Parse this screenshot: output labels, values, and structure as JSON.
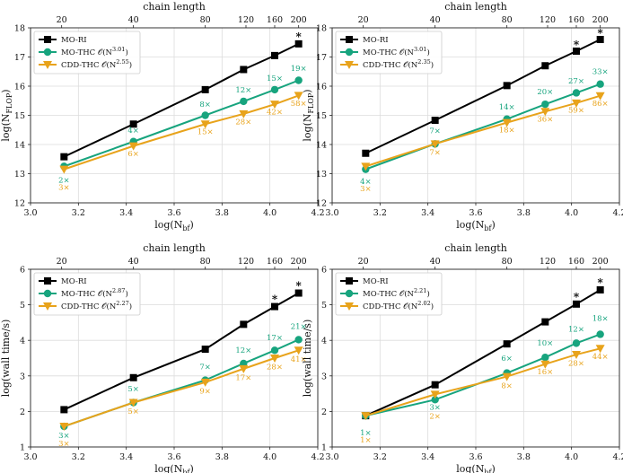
{
  "colors": {
    "mo_ri": "#000000",
    "mo_thc": "#17a47e",
    "cdd_thc": "#e8a31b"
  },
  "chart_data": [
    {
      "type": "line",
      "xlabel": "log(N_bf)",
      "ylabel": "log(N_FLOP)",
      "top_xlabel": "chain length",
      "top_ticks": [
        {
          "pos": 3.13,
          "label": "20"
        },
        {
          "pos": 3.43,
          "label": "40"
        },
        {
          "pos": 3.73,
          "label": "80"
        },
        {
          "pos": 3.9,
          "label": "120"
        },
        {
          "pos": 4.02,
          "label": "160"
        },
        {
          "pos": 4.12,
          "label": "200"
        }
      ],
      "xlim": [
        3.0,
        4.2
      ],
      "ylim": [
        12,
        18
      ],
      "xticks": [
        "3.0",
        "3.2",
        "3.4",
        "3.6",
        "3.8",
        "4.0",
        "4.2"
      ],
      "yticks": [
        "12",
        "13",
        "14",
        "15",
        "16",
        "17",
        "18"
      ],
      "legend_loc": "upper-left",
      "series": [
        {
          "key": "mo_ri",
          "name": "MO-RI",
          "name_base": "MO-RI",
          "name_exp": "",
          "marker": "square",
          "x": [
            3.14,
            3.43,
            3.73,
            3.89,
            4.02,
            4.12
          ],
          "y": [
            13.58,
            14.7,
            15.88,
            16.57,
            17.05,
            17.45
          ]
        },
        {
          "key": "mo_thc",
          "name": "MO-THC O(N^3.01)",
          "name_base": "MO-THC 𝒪(N",
          "name_exp": "3.01",
          "marker": "circle",
          "x": [
            3.14,
            3.43,
            3.73,
            3.89,
            4.02,
            4.12
          ],
          "y": [
            13.25,
            14.1,
            15.0,
            15.48,
            15.88,
            16.2
          ]
        },
        {
          "key": "cdd_thc",
          "name": "CDD-THC O(N^2.55)",
          "name_base": "CDD-THC 𝒪(N",
          "name_exp": "2.55",
          "marker": "triangle-down",
          "x": [
            3.14,
            3.43,
            3.73,
            3.89,
            4.02,
            4.12
          ],
          "y": [
            13.15,
            13.95,
            14.7,
            15.05,
            15.38,
            15.68
          ]
        }
      ],
      "annotations": [
        {
          "series": "mo_thc",
          "text": "2×",
          "x": 3.14,
          "y": 12.7
        },
        {
          "series": "cdd_thc",
          "text": "3×",
          "x": 3.14,
          "y": 12.45
        },
        {
          "series": "mo_thc",
          "text": "4×",
          "x": 3.43,
          "y": 14.4
        },
        {
          "series": "cdd_thc",
          "text": "6×",
          "x": 3.43,
          "y": 13.6
        },
        {
          "series": "mo_thc",
          "text": "8×",
          "x": 3.73,
          "y": 15.3
        },
        {
          "series": "cdd_thc",
          "text": "15×",
          "x": 3.73,
          "y": 14.35
        },
        {
          "series": "mo_thc",
          "text": "12×",
          "x": 3.89,
          "y": 15.78
        },
        {
          "series": "cdd_thc",
          "text": "28×",
          "x": 3.89,
          "y": 14.7
        },
        {
          "series": "mo_thc",
          "text": "15×",
          "x": 4.02,
          "y": 16.18
        },
        {
          "series": "cdd_thc",
          "text": "42×",
          "x": 4.02,
          "y": 15.03
        },
        {
          "series": "mo_thc",
          "text": "19×",
          "x": 4.12,
          "y": 16.52
        },
        {
          "series": "cdd_thc",
          "text": "58×",
          "x": 4.12,
          "y": 15.33
        }
      ],
      "stars": [
        {
          "x": 4.12,
          "y": 17.75
        }
      ]
    },
    {
      "type": "line",
      "xlabel": "log(N_bf)",
      "ylabel": "log(N_FLOP)",
      "top_xlabel": "chain length",
      "top_ticks": [
        {
          "pos": 3.13,
          "label": "20"
        },
        {
          "pos": 3.43,
          "label": "40"
        },
        {
          "pos": 3.73,
          "label": "80"
        },
        {
          "pos": 3.9,
          "label": "120"
        },
        {
          "pos": 4.02,
          "label": "160"
        },
        {
          "pos": 4.12,
          "label": "200"
        }
      ],
      "xlim": [
        3.0,
        4.2
      ],
      "ylim": [
        12,
        18
      ],
      "xticks": [
        "3.0",
        "3.2",
        "3.4",
        "3.6",
        "3.8",
        "4.0",
        "4.2"
      ],
      "yticks": [
        "12",
        "13",
        "14",
        "15",
        "16",
        "17",
        "18"
      ],
      "legend_loc": "upper-left",
      "series": [
        {
          "key": "mo_ri",
          "name": "MO-RI",
          "name_base": "MO-RI",
          "name_exp": "",
          "marker": "square",
          "x": [
            3.14,
            3.43,
            3.73,
            3.89,
            4.02,
            4.12
          ],
          "y": [
            13.7,
            14.83,
            16.02,
            16.7,
            17.2,
            17.6
          ]
        },
        {
          "key": "mo_thc",
          "name": "MO-THC O(N^3.01)",
          "name_base": "MO-THC 𝒪(N",
          "name_exp": "3.01",
          "marker": "circle",
          "x": [
            3.14,
            3.43,
            3.73,
            3.89,
            4.02,
            4.12
          ],
          "y": [
            13.15,
            14.02,
            14.87,
            15.38,
            15.77,
            16.07
          ]
        },
        {
          "key": "cdd_thc",
          "name": "CDD-THC O(N^2.35)",
          "name_base": "CDD-THC 𝒪(N",
          "name_exp": "2.35",
          "marker": "triangle-down",
          "x": [
            3.14,
            3.43,
            3.73,
            3.89,
            4.02,
            4.12
          ],
          "y": [
            13.25,
            14.02,
            14.75,
            15.13,
            15.42,
            15.67
          ]
        }
      ],
      "annotations": [
        {
          "series": "mo_thc",
          "text": "4×",
          "x": 3.14,
          "y": 12.65
        },
        {
          "series": "cdd_thc",
          "text": "3×",
          "x": 3.14,
          "y": 12.4
        },
        {
          "series": "mo_thc",
          "text": "7×",
          "x": 3.43,
          "y": 14.38
        },
        {
          "series": "cdd_thc",
          "text": "7×",
          "x": 3.43,
          "y": 13.65
        },
        {
          "series": "mo_thc",
          "text": "14×",
          "x": 3.73,
          "y": 15.2
        },
        {
          "series": "cdd_thc",
          "text": "18×",
          "x": 3.73,
          "y": 14.42
        },
        {
          "series": "mo_thc",
          "text": "20×",
          "x": 3.89,
          "y": 15.72
        },
        {
          "series": "cdd_thc",
          "text": "36×",
          "x": 3.89,
          "y": 14.78
        },
        {
          "series": "mo_thc",
          "text": "27×",
          "x": 4.02,
          "y": 16.1
        },
        {
          "series": "cdd_thc",
          "text": "59×",
          "x": 4.02,
          "y": 15.1
        },
        {
          "series": "mo_thc",
          "text": "33×",
          "x": 4.12,
          "y": 16.42
        },
        {
          "series": "cdd_thc",
          "text": "86×",
          "x": 4.12,
          "y": 15.33
        }
      ],
      "stars": [
        {
          "x": 4.02,
          "y": 17.47
        },
        {
          "x": 4.12,
          "y": 17.87
        }
      ]
    },
    {
      "type": "line",
      "xlabel": "log(N_bf)",
      "ylabel": "log(wall time/s)",
      "top_xlabel": "chain length",
      "top_ticks": [
        {
          "pos": 3.13,
          "label": "20"
        },
        {
          "pos": 3.43,
          "label": "40"
        },
        {
          "pos": 3.73,
          "label": "80"
        },
        {
          "pos": 3.9,
          "label": "120"
        },
        {
          "pos": 4.02,
          "label": "160"
        },
        {
          "pos": 4.12,
          "label": "200"
        }
      ],
      "xlim": [
        3.0,
        4.2
      ],
      "ylim": [
        1,
        6
      ],
      "xticks": [
        "3.0",
        "3.2",
        "3.4",
        "3.6",
        "3.8",
        "4.0",
        "4.2"
      ],
      "yticks": [
        "1",
        "2",
        "3",
        "4",
        "5",
        "6"
      ],
      "legend_loc": "upper-left",
      "series": [
        {
          "key": "mo_ri",
          "name": "MO-RI",
          "name_base": "MO-RI",
          "name_exp": "",
          "marker": "square",
          "x": [
            3.14,
            3.43,
            3.73,
            3.89,
            4.02,
            4.12
          ],
          "y": [
            2.05,
            2.95,
            3.75,
            4.45,
            4.95,
            5.33
          ]
        },
        {
          "key": "mo_thc",
          "name": "MO-THC O(N^2.87)",
          "name_base": "MO-THC 𝒪(N",
          "name_exp": "2.87",
          "marker": "circle",
          "x": [
            3.14,
            3.43,
            3.73,
            3.89,
            4.02,
            4.12
          ],
          "y": [
            1.58,
            2.25,
            2.88,
            3.35,
            3.72,
            4.02
          ]
        },
        {
          "key": "cdd_thc",
          "name": "CDD-THC O(N^2.27)",
          "name_base": "CDD-THC 𝒪(N",
          "name_exp": "2.27",
          "marker": "triangle-down",
          "x": [
            3.14,
            3.43,
            3.73,
            3.89,
            4.02,
            4.12
          ],
          "y": [
            1.58,
            2.25,
            2.82,
            3.2,
            3.5,
            3.72
          ]
        }
      ],
      "annotations": [
        {
          "series": "mo_thc",
          "text": "3×",
          "x": 3.14,
          "y": 1.25
        },
        {
          "series": "cdd_thc",
          "text": "3×",
          "x": 3.14,
          "y": 1.03
        },
        {
          "series": "mo_thc",
          "text": "5×",
          "x": 3.43,
          "y": 2.57
        },
        {
          "series": "cdd_thc",
          "text": "5×",
          "x": 3.43,
          "y": 1.93
        },
        {
          "series": "mo_thc",
          "text": "7×",
          "x": 3.73,
          "y": 3.18
        },
        {
          "series": "cdd_thc",
          "text": "9×",
          "x": 3.73,
          "y": 2.5
        },
        {
          "series": "mo_thc",
          "text": "12×",
          "x": 3.89,
          "y": 3.65
        },
        {
          "series": "cdd_thc",
          "text": "17×",
          "x": 3.89,
          "y": 2.88
        },
        {
          "series": "mo_thc",
          "text": "17×",
          "x": 4.02,
          "y": 4.0
        },
        {
          "series": "cdd_thc",
          "text": "28×",
          "x": 4.02,
          "y": 3.18
        },
        {
          "series": "mo_thc",
          "text": "21×",
          "x": 4.12,
          "y": 4.32
        },
        {
          "series": "cdd_thc",
          "text": "41×",
          "x": 4.12,
          "y": 3.4
        }
      ],
      "stars": [
        {
          "x": 4.02,
          "y": 5.2
        },
        {
          "x": 4.12,
          "y": 5.58
        }
      ]
    },
    {
      "type": "line",
      "xlabel": "log(N_bf)",
      "ylabel": "log(wall time/s)",
      "top_xlabel": "chain length",
      "top_ticks": [
        {
          "pos": 3.13,
          "label": "20"
        },
        {
          "pos": 3.43,
          "label": "40"
        },
        {
          "pos": 3.73,
          "label": "80"
        },
        {
          "pos": 3.9,
          "label": "120"
        },
        {
          "pos": 4.02,
          "label": "160"
        },
        {
          "pos": 4.12,
          "label": "200"
        }
      ],
      "xlim": [
        3.0,
        4.2
      ],
      "ylim": [
        1,
        6
      ],
      "xticks": [
        "3.0",
        "3.2",
        "3.4",
        "3.6",
        "3.8",
        "4.0",
        "4.2"
      ],
      "yticks": [
        "1",
        "2",
        "3",
        "4",
        "5",
        "6"
      ],
      "legend_loc": "upper-left",
      "series": [
        {
          "key": "mo_ri",
          "name": "MO-RI",
          "name_base": "MO-RI",
          "name_exp": "",
          "marker": "square",
          "x": [
            3.14,
            3.43,
            3.73,
            3.89,
            4.02,
            4.12
          ],
          "y": [
            1.88,
            2.75,
            3.9,
            4.52,
            5.02,
            5.42
          ]
        },
        {
          "key": "mo_thc",
          "name": "MO-THC O(N^2.21)",
          "name_base": "MO-THC 𝒪(N",
          "name_exp": "2.21",
          "marker": "circle",
          "x": [
            3.14,
            3.43,
            3.73,
            3.89,
            4.02,
            4.12
          ],
          "y": [
            1.88,
            2.33,
            3.08,
            3.52,
            3.92,
            4.17
          ]
        },
        {
          "key": "cdd_thc",
          "name": "CDD-THC O(N^2.02)",
          "name_base": "CDD-THC 𝒪(N",
          "name_exp": "2.02",
          "marker": "triangle-down",
          "x": [
            3.14,
            3.43,
            3.73,
            3.89,
            4.02,
            4.12
          ],
          "y": [
            1.88,
            2.48,
            2.98,
            3.33,
            3.6,
            3.77
          ]
        }
      ],
      "annotations": [
        {
          "series": "mo_thc",
          "text": "1×",
          "x": 3.14,
          "y": 1.33
        },
        {
          "series": "cdd_thc",
          "text": "1×",
          "x": 3.14,
          "y": 1.12
        },
        {
          "series": "mo_thc",
          "text": "3×",
          "x": 3.43,
          "y": 2.05
        },
        {
          "series": "cdd_thc",
          "text": "2×",
          "x": 3.43,
          "y": 1.8
        },
        {
          "series": "mo_thc",
          "text": "6×",
          "x": 3.73,
          "y": 3.42
        },
        {
          "series": "cdd_thc",
          "text": "8×",
          "x": 3.73,
          "y": 2.65
        },
        {
          "series": "mo_thc",
          "text": "10×",
          "x": 3.89,
          "y": 3.85
        },
        {
          "series": "cdd_thc",
          "text": "16×",
          "x": 3.89,
          "y": 3.05
        },
        {
          "series": "mo_thc",
          "text": "12×",
          "x": 4.02,
          "y": 4.25
        },
        {
          "series": "cdd_thc",
          "text": "28×",
          "x": 4.02,
          "y": 3.28
        },
        {
          "series": "mo_thc",
          "text": "18×",
          "x": 4.12,
          "y": 4.55
        },
        {
          "series": "cdd_thc",
          "text": "44×",
          "x": 4.12,
          "y": 3.47
        }
      ],
      "stars": [
        {
          "x": 4.02,
          "y": 5.27
        },
        {
          "x": 4.12,
          "y": 5.67
        }
      ]
    }
  ]
}
